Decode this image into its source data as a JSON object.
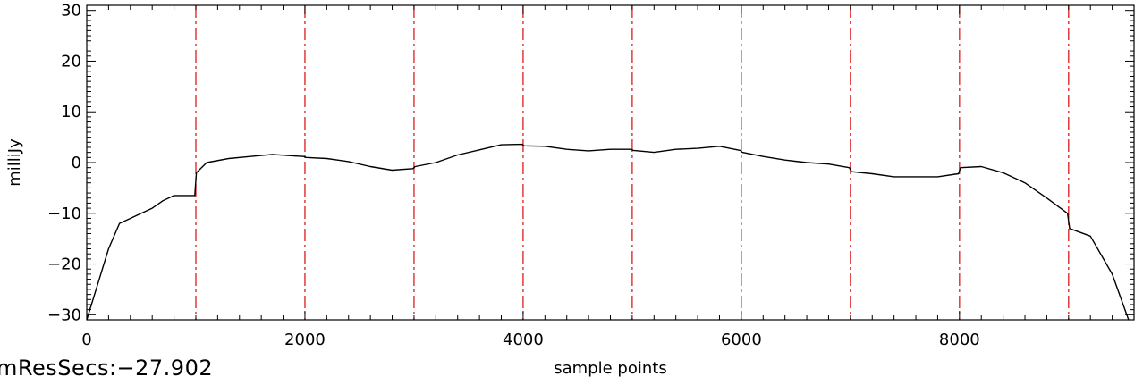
{
  "chart_data": {
    "type": "line",
    "title": "",
    "xlabel": "sample points",
    "ylabel": "milliJy",
    "xlim": [
      0,
      9600
    ],
    "ylim": [
      -31,
      31
    ],
    "xticks": [
      0,
      2000,
      4000,
      6000,
      8000
    ],
    "xtick_labels": [
      "0",
      "2000",
      "4000",
      "6000",
      "8000"
    ],
    "yticks": [
      -30,
      -20,
      -10,
      0,
      10,
      20,
      30
    ],
    "ytick_labels": [
      "−30",
      "−20",
      "−10",
      "0",
      "10",
      "20",
      "30"
    ],
    "vlines": [
      1000,
      2000,
      3000,
      4000,
      5000,
      6000,
      7000,
      8000,
      9000
    ],
    "vline_color": "#dd1c1c",
    "line_color": "#000000",
    "grid": false,
    "series": [
      {
        "x": [
          0,
          100,
          200,
          300,
          400,
          500,
          600,
          700,
          800,
          900,
          990,
          1005,
          1100,
          1300,
          1500,
          1700,
          1900,
          1990,
          2010,
          2200,
          2400,
          2600,
          2800,
          2990,
          3010,
          3200,
          3400,
          3600,
          3800,
          3990,
          4010,
          4200,
          4400,
          4600,
          4800,
          4990,
          5010,
          5200,
          5400,
          5600,
          5800,
          5990,
          6010,
          6200,
          6400,
          6600,
          6800,
          6990,
          7010,
          7200,
          7400,
          7600,
          7800,
          7990,
          8010,
          8200,
          8400,
          8600,
          8800,
          8990,
          9010,
          9200,
          9400,
          9550
        ],
        "y": [
          -31,
          -24,
          -17,
          -12,
          -11,
          -10,
          -9,
          -7.5,
          -6.5,
          -6.5,
          -6.5,
          -2,
          0,
          0.8,
          1.2,
          1.6,
          1.3,
          1.2,
          1.0,
          0.8,
          0.2,
          -0.8,
          -1.5,
          -1.2,
          -0.8,
          0,
          1.5,
          2.5,
          3.5,
          3.6,
          3.3,
          3.2,
          2.6,
          2.3,
          2.6,
          2.6,
          2.4,
          2.0,
          2.6,
          2.8,
          3.2,
          2.4,
          2.0,
          1.2,
          0.5,
          0,
          -0.3,
          -1.0,
          -1.8,
          -2.2,
          -2.8,
          -2.8,
          -2.8,
          -2.2,
          -1.0,
          -0.8,
          -2.0,
          -4.0,
          -7.0,
          -10,
          -13,
          -14.5,
          -22,
          -31
        ]
      }
    ]
  },
  "footer": {
    "text": "mResSecs:−27.902"
  }
}
